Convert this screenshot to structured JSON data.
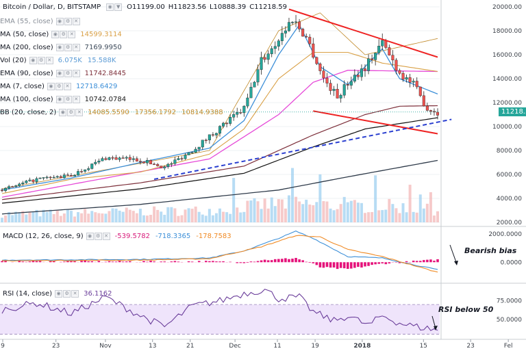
{
  "header": {
    "symbol": "Bitcoin / Dollar, D, BITSTAMP",
    "o": "O11199.00",
    "h": "H11823.56",
    "l": "L10888.39",
    "c": "C11218.59"
  },
  "indicators": [
    {
      "name": "EMA (55, close)",
      "values": [],
      "color": "#a0a4ab"
    },
    {
      "name": "MA (50, close)",
      "values": [
        "14599.3114"
      ],
      "color": "#d9a046"
    },
    {
      "name": "MA (200, close)",
      "values": [
        "7169.9950"
      ],
      "color": "#3d4a5a"
    },
    {
      "name": "Vol (20)",
      "values": [
        "6.075K",
        "15.588K"
      ],
      "color": "#5b9bd5"
    },
    {
      "name": "EMA (90, close)",
      "values": [
        "11742.8445"
      ],
      "color": "#7d2f3a"
    },
    {
      "name": "MA (7, close)",
      "values": [
        "12718.6429"
      ],
      "color": "#3c8fd8"
    },
    {
      "name": "MA (100, close)",
      "values": [
        "10742.0784"
      ],
      "color": "#1a1a1a"
    },
    {
      "name": "BB (20, close, 2)",
      "values": [
        "14085.5590",
        "17356.1792",
        "10814.9388"
      ],
      "color": "#c18a2a"
    }
  ],
  "macd": {
    "name": "MACD (12, 26, close, 9)",
    "values": [
      "-539.5782",
      "-718.3365",
      "-178.7583"
    ],
    "colors": [
      "#d81b7a",
      "#3c8fd8",
      "#f08a24"
    ]
  },
  "rsi": {
    "name": "RSI (14, close)",
    "value": "36.1162",
    "color": "#6a3d9a"
  },
  "price_tag": "11218.59",
  "annotations": {
    "bearish": "Bearish bias",
    "rsi": "RSI below 50"
  },
  "chart_data": {
    "type": "candlestick",
    "title": "Bitcoin / Dollar, D, BITSTAMP",
    "price_axis": {
      "ticks": [
        "20000.00",
        "18000.00",
        "16000.00",
        "14000.00",
        "12000.00",
        "10000.00",
        "8000.00",
        "6000.00",
        "4000.00",
        "2000.00"
      ],
      "range": [
        2000,
        20000
      ]
    },
    "macd_axis": {
      "ticks": [
        "2000.0000",
        "0.0000"
      ],
      "range": [
        -1300,
        2300
      ]
    },
    "rsi_axis": {
      "ticks": [
        "75.0000",
        "50.0000"
      ],
      "range": [
        25,
        95
      ],
      "band": [
        30,
        70
      ]
    },
    "x_ticks": [
      "9",
      "23",
      "Nov",
      "13",
      "21",
      "Dec",
      "11",
      "19",
      "2018",
      "15",
      "23",
      "Fel"
    ],
    "close_anchors": [
      [
        0,
        4700
      ],
      [
        10,
        5600
      ],
      [
        20,
        5900
      ],
      [
        30,
        7400
      ],
      [
        40,
        7200
      ],
      [
        47,
        6600
      ],
      [
        55,
        8000
      ],
      [
        63,
        9900
      ],
      [
        70,
        11500
      ],
      [
        75,
        15500
      ],
      [
        78,
        16500
      ],
      [
        84,
        19000
      ],
      [
        88,
        17500
      ],
      [
        93,
        14000
      ],
      [
        97,
        12500
      ],
      [
        101,
        14000
      ],
      [
        105,
        15000
      ],
      [
        110,
        17000
      ],
      [
        115,
        14500
      ],
      [
        119,
        13500
      ],
      [
        123,
        11500
      ],
      [
        126,
        11218
      ]
    ],
    "ma50_anchors": [
      [
        0,
        4400
      ],
      [
        20,
        5600
      ],
      [
        40,
        6200
      ],
      [
        60,
        7700
      ],
      [
        70,
        9800
      ],
      [
        80,
        14000
      ],
      [
        90,
        16200
      ],
      [
        100,
        16200
      ],
      [
        110,
        15300
      ],
      [
        126,
        14600
      ]
    ],
    "ma200_anchors": [
      [
        0,
        2700
      ],
      [
        40,
        3500
      ],
      [
        80,
        4700
      ],
      [
        100,
        5800
      ],
      [
        126,
        7170
      ]
    ],
    "ema90_anchors": [
      [
        0,
        3900
      ],
      [
        40,
        5300
      ],
      [
        70,
        6700
      ],
      [
        90,
        9300
      ],
      [
        105,
        11000
      ],
      [
        115,
        11700
      ],
      [
        126,
        11742
      ]
    ],
    "ma100_anchors": [
      [
        0,
        3600
      ],
      [
        40,
        4800
      ],
      [
        70,
        6100
      ],
      [
        90,
        8300
      ],
      [
        105,
        9800
      ],
      [
        126,
        10742
      ]
    ],
    "bb_upper_anchors": [
      [
        0,
        4800
      ],
      [
        60,
        8000
      ],
      [
        80,
        18000
      ],
      [
        92,
        19500
      ],
      [
        105,
        16000
      ],
      [
        126,
        17356
      ]
    ],
    "ema55_anchors": [
      [
        0,
        4100
      ],
      [
        60,
        7300
      ],
      [
        80,
        11000
      ],
      [
        90,
        13700
      ],
      [
        100,
        14700
      ],
      [
        126,
        14600
      ]
    ],
    "ma7_anchors": [
      [
        0,
        4700
      ],
      [
        20,
        5700
      ],
      [
        40,
        7000
      ],
      [
        60,
        8200
      ],
      [
        70,
        10500
      ],
      [
        80,
        16000
      ],
      [
        86,
        18500
      ],
      [
        92,
        15000
      ],
      [
        100,
        13500
      ],
      [
        110,
        16500
      ],
      [
        115,
        14000
      ],
      [
        126,
        12718
      ]
    ],
    "volume_anchors": [
      [
        0,
        700
      ],
      [
        60,
        1000
      ],
      [
        80,
        1600
      ],
      [
        90,
        1500
      ],
      [
        100,
        1300
      ],
      [
        110,
        1400
      ],
      [
        126,
        1000
      ]
    ],
    "macd_anchors": [
      [
        0,
        150
      ],
      [
        40,
        200
      ],
      [
        60,
        300
      ],
      [
        70,
        800
      ],
      [
        80,
        1700
      ],
      [
        85,
        2200
      ],
      [
        90,
        1700
      ],
      [
        100,
        400
      ],
      [
        110,
        300
      ],
      [
        126,
        -539
      ]
    ],
    "signal_anchors": [
      [
        0,
        100
      ],
      [
        40,
        150
      ],
      [
        60,
        250
      ],
      [
        75,
        1100
      ],
      [
        85,
        1900
      ],
      [
        92,
        1800
      ],
      [
        100,
        900
      ],
      [
        110,
        400
      ],
      [
        126,
        -718
      ]
    ],
    "rsi_anchors": [
      [
        0,
        63
      ],
      [
        10,
        72
      ],
      [
        20,
        58
      ],
      [
        30,
        80
      ],
      [
        40,
        55
      ],
      [
        47,
        40
      ],
      [
        55,
        68
      ],
      [
        63,
        75
      ],
      [
        70,
        85
      ],
      [
        76,
        90
      ],
      [
        80,
        78
      ],
      [
        86,
        80
      ],
      [
        90,
        60
      ],
      [
        96,
        48
      ],
      [
        100,
        55
      ],
      [
        106,
        42
      ],
      [
        110,
        55
      ],
      [
        115,
        45
      ],
      [
        120,
        40
      ],
      [
        126,
        36
      ]
    ],
    "trendlines": [
      {
        "color": "#ee2222",
        "from": [
          83,
          19800
        ],
        "to": [
          126,
          15800
        ]
      },
      {
        "color": "#ee2222",
        "from": [
          90,
          11300
        ],
        "to": [
          126,
          9400
        ]
      },
      {
        "color": "#2a3fd0",
        "dashed": true,
        "from": [
          44,
          5600
        ],
        "to": [
          130,
          10600
        ]
      }
    ]
  }
}
